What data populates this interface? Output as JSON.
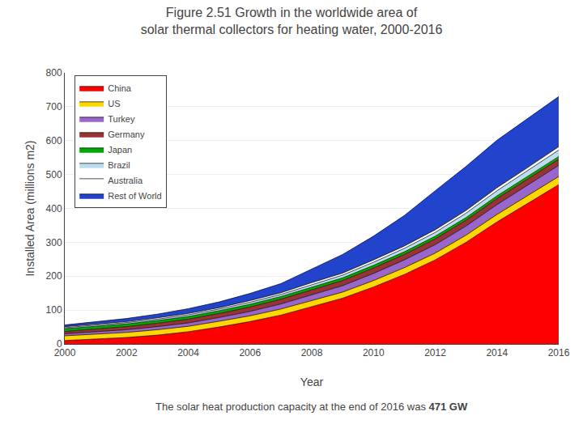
{
  "chart_data": {
    "type": "area",
    "stacked": true,
    "title": "Figure 2.51 Growth in the worldwide area of\nsolar thermal collectors for heating water, 2000-2016",
    "x_label": "Year",
    "y_label": "Installed Area (millions m2)",
    "x": [
      2000,
      2001,
      2002,
      2003,
      2004,
      2005,
      2006,
      2007,
      2008,
      2009,
      2010,
      2011,
      2012,
      2013,
      2014,
      2015,
      2016
    ],
    "series": [
      {
        "name": "China",
        "color": "#FF0000",
        "values": [
          10,
          14,
          19,
          26,
          36,
          50,
          66,
          85,
          110,
          135,
          168,
          205,
          248,
          300,
          360,
          415,
          470
        ]
      },
      {
        "name": "US",
        "color": "#FFD700",
        "values": [
          14,
          15,
          15,
          16,
          16,
          17,
          17,
          18,
          18,
          18,
          19,
          20,
          20,
          21,
          22,
          23,
          24
        ]
      },
      {
        "name": "Turkey",
        "color": "#9966CC",
        "values": [
          6,
          7,
          8,
          9,
          10,
          11,
          13,
          15,
          17,
          19,
          21,
          23,
          25,
          27,
          29,
          31,
          33
        ]
      },
      {
        "name": "Germany",
        "color": "#993333",
        "values": [
          7,
          8,
          9,
          10,
          11,
          12,
          13,
          14,
          15,
          15,
          16,
          16,
          17,
          17,
          18,
          18,
          18
        ]
      },
      {
        "name": "Japan",
        "color": "#00AA00",
        "values": [
          8,
          8,
          8,
          8,
          8,
          8,
          8,
          8,
          8,
          8,
          8,
          8,
          8,
          8,
          8,
          8,
          8
        ]
      },
      {
        "name": "Brazil",
        "color": "#BBDDEE",
        "values": [
          3,
          3,
          4,
          4,
          5,
          5,
          6,
          6,
          7,
          8,
          9,
          10,
          11,
          13,
          15,
          17,
          19
        ]
      },
      {
        "name": "Australia",
        "color": "#FFFFFF",
        "values": [
          3,
          3,
          3,
          4,
          4,
          4,
          5,
          5,
          6,
          6,
          7,
          7,
          8,
          8,
          9,
          9,
          10
        ]
      },
      {
        "name": "Rest of World",
        "color": "#2244CC",
        "values": [
          5,
          7,
          9,
          11,
          14,
          17,
          21,
          27,
          40,
          55,
          70,
          90,
          115,
          130,
          140,
          145,
          148
        ]
      }
    ],
    "xlim": [
      2000,
      2016
    ],
    "xticks": [
      2000,
      2002,
      2004,
      2006,
      2008,
      2010,
      2012,
      2014,
      2016
    ],
    "ylim": [
      0,
      800
    ],
    "yticks": [
      0,
      100,
      200,
      300,
      400,
      500,
      600,
      700,
      800
    ],
    "grid": "y",
    "legend": "upper left",
    "annotations": [
      "The solar heat production capacity at the end of 2016 was",
      "471 GW"
    ]
  }
}
